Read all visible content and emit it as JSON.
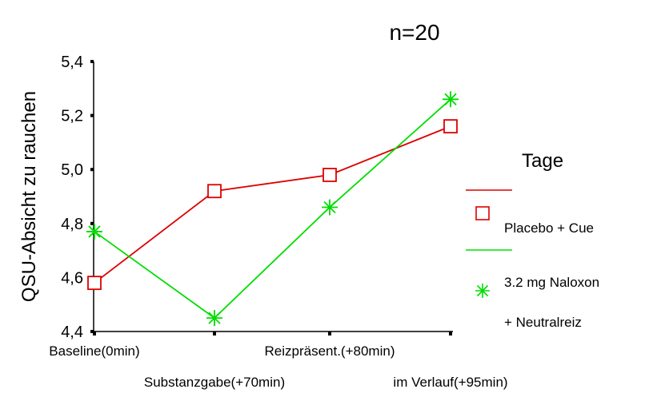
{
  "chart_data": {
    "type": "line",
    "title": "n=20",
    "ylabel": "QSU-Absicht zu rauchen",
    "xlabel": "",
    "ylim": [
      4.4,
      5.4
    ],
    "yticks": [
      "4,4",
      "4,6",
      "4,8",
      "5,0",
      "5,2",
      "5,4"
    ],
    "ytick_values": [
      4.4,
      4.6,
      4.8,
      5.0,
      5.2,
      5.4
    ],
    "categories": [
      "Baseline(0min)",
      "Substanzgabe(+70min)",
      "Reizpräsent.(+80min)",
      "im Verlauf(+95min)"
    ],
    "grid": false,
    "legend": {
      "title": "Tage",
      "placement": "right",
      "entries": [
        {
          "line1": "Placebo + Cue",
          "line2": ""
        },
        {
          "line1": "3.2 mg Naloxon",
          "line2": "+ Neutralreiz"
        }
      ]
    },
    "series": [
      {
        "name": "Placebo + Cue",
        "color": "#dd0000",
        "marker": "square",
        "values": [
          4.58,
          4.92,
          4.98,
          5.16
        ]
      },
      {
        "name": "3.2 mg Naloxon + Neutralreiz",
        "color": "#00dd00",
        "marker": "asterisk",
        "values": [
          4.77,
          4.45,
          4.86,
          5.26
        ]
      }
    ]
  }
}
